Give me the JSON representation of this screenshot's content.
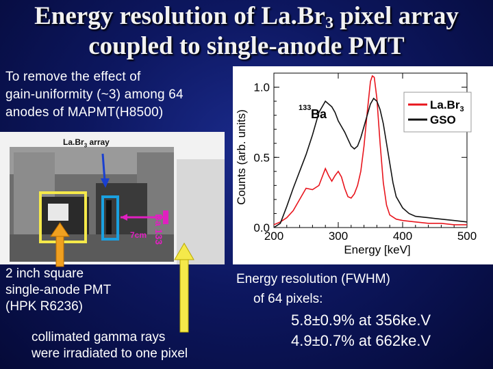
{
  "title": {
    "line1_prefix": "Energy resolution of La.Br",
    "line1_sub": "3",
    "line1_suffix": " pixel array",
    "line2": "coupled to single-anode PMT"
  },
  "intro": {
    "line1": "To remove the effect of",
    "line2": "gain-uniformity (~3) among 64",
    "line3": "anodes of MAPMT(H8500)"
  },
  "photo": {
    "array_label_prefix": "La.Br",
    "array_label_sub": "3",
    "array_label_suffix": " array",
    "source_label": "Ba 133",
    "distance_label": "7cm"
  },
  "pmt_text": {
    "line1": "2 inch square",
    "line2": "single-anode PMT",
    "line3": "(HPK R6236)"
  },
  "gamma_text": {
    "line1": "collimated gamma rays",
    "line2": "were irradiated to one pixel"
  },
  "resolution": {
    "line1": "Energy resolution (FWHM)",
    "line2": "of 64 pixels:",
    "result1": "5.8±0.9% at 356ke.V",
    "result2": "4.9±0.7% at 662ke.V"
  },
  "chart_data": {
    "type": "line",
    "xlabel": "Energy [keV]",
    "ylabel": "Counts (arb. units)",
    "xlim": [
      200,
      500
    ],
    "ylim": [
      0,
      1.1
    ],
    "x_ticks": [
      "200",
      "300",
      "400",
      "500"
    ],
    "y_ticks": [
      "0.0",
      "0.5",
      "1.0"
    ],
    "annotation": "133Ba",
    "annotation_mass": "133",
    "annotation_element": "Ba",
    "legend_position": "top-right",
    "series": [
      {
        "name": "La.Br3",
        "legend_prefix": "La.Br",
        "legend_sub": "3",
        "color": "#e8141c",
        "x": [
          200,
          210,
          220,
          230,
          240,
          250,
          260,
          270,
          275,
          280,
          285,
          290,
          295,
          300,
          305,
          310,
          315,
          320,
          325,
          330,
          335,
          340,
          345,
          350,
          353,
          356,
          360,
          365,
          370,
          375,
          380,
          390,
          400,
          420,
          440,
          460,
          480,
          500
        ],
        "y": [
          0.02,
          0.04,
          0.07,
          0.12,
          0.2,
          0.28,
          0.27,
          0.3,
          0.36,
          0.42,
          0.37,
          0.33,
          0.37,
          0.4,
          0.36,
          0.28,
          0.22,
          0.21,
          0.24,
          0.3,
          0.4,
          0.58,
          0.82,
          1.04,
          1.08,
          1.07,
          0.92,
          0.6,
          0.32,
          0.16,
          0.09,
          0.06,
          0.05,
          0.04,
          0.03,
          0.03,
          0.02,
          0.02
        ]
      },
      {
        "name": "GSO",
        "color": "#111111",
        "x": [
          200,
          210,
          220,
          230,
          240,
          250,
          260,
          270,
          280,
          290,
          295,
          300,
          305,
          310,
          315,
          320,
          325,
          330,
          335,
          340,
          345,
          350,
          355,
          360,
          365,
          370,
          375,
          380,
          385,
          390,
          400,
          410,
          420,
          440,
          460,
          480,
          500
        ],
        "y": [
          0.0,
          0.03,
          0.15,
          0.28,
          0.4,
          0.52,
          0.66,
          0.82,
          0.9,
          0.86,
          0.82,
          0.76,
          0.72,
          0.68,
          0.63,
          0.58,
          0.56,
          0.58,
          0.64,
          0.72,
          0.8,
          0.88,
          0.92,
          0.9,
          0.84,
          0.74,
          0.6,
          0.46,
          0.32,
          0.22,
          0.14,
          0.1,
          0.08,
          0.07,
          0.06,
          0.05,
          0.04
        ]
      }
    ]
  }
}
